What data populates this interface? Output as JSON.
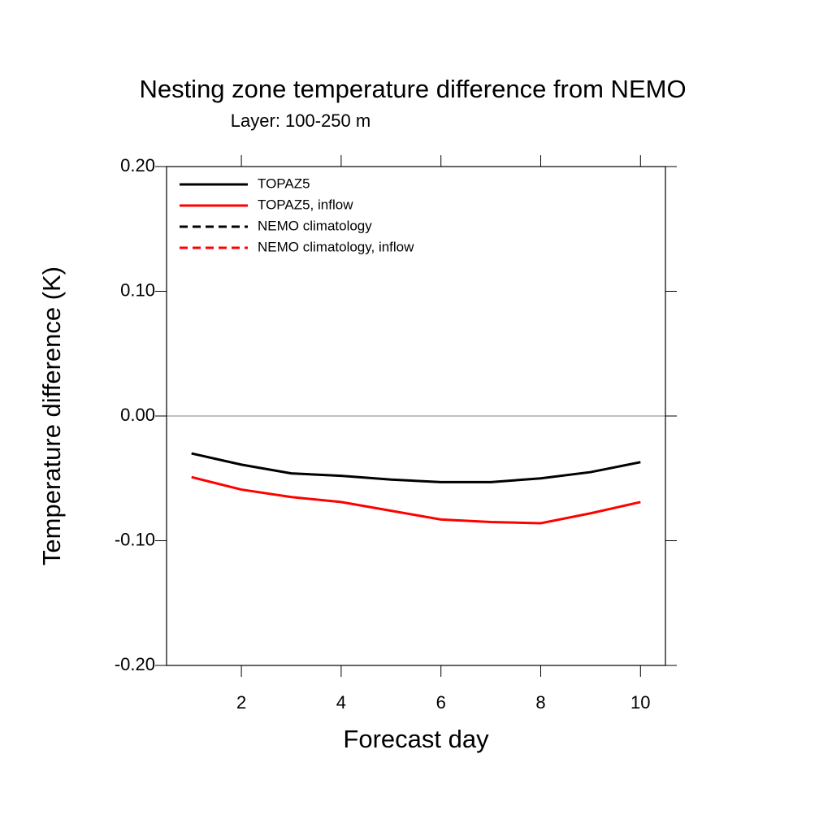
{
  "chart_data": {
    "type": "line",
    "title": "Nesting zone temperature difference from NEMO",
    "subtitle": "Layer: 100-250 m",
    "xlabel": "Forecast day",
    "ylabel": "Temperature difference (K)",
    "x": [
      1,
      2,
      3,
      4,
      5,
      6,
      7,
      8,
      9,
      10
    ],
    "series": [
      {
        "name": "TOPAZ5",
        "color": "#000000",
        "dash": false,
        "values": [
          -0.03,
          -0.039,
          -0.046,
          -0.048,
          -0.051,
          -0.053,
          -0.053,
          -0.05,
          -0.045,
          -0.037
        ]
      },
      {
        "name": "TOPAZ5, inflow",
        "color": "#ff0000",
        "dash": false,
        "values": [
          -0.049,
          -0.059,
          -0.065,
          -0.069,
          -0.076,
          -0.083,
          -0.085,
          -0.086,
          -0.078,
          -0.069
        ]
      },
      {
        "name": "NEMO climatology",
        "color": "#000000",
        "dash": true,
        "values": [
          null,
          null,
          null,
          null,
          null,
          null,
          null,
          null,
          null,
          null
        ]
      },
      {
        "name": "NEMO climatology, inflow",
        "color": "#ff0000",
        "dash": true,
        "values": [
          null,
          null,
          null,
          null,
          null,
          null,
          null,
          null,
          null,
          null
        ]
      }
    ],
    "xlim": [
      0.5,
      10.5
    ],
    "xticks": [
      2,
      4,
      6,
      8,
      10
    ],
    "ylim": [
      -0.2,
      0.2
    ],
    "yticks": [
      {
        "value": -0.2,
        "label": "-0.20"
      },
      {
        "value": -0.1,
        "label": "-0.10"
      },
      {
        "value": 0,
        "label": "0.00"
      },
      {
        "value": 0.1,
        "label": "0.10"
      },
      {
        "value": 0.2,
        "label": "0.20"
      }
    ],
    "reference_line": 0,
    "legend": "upper left"
  }
}
